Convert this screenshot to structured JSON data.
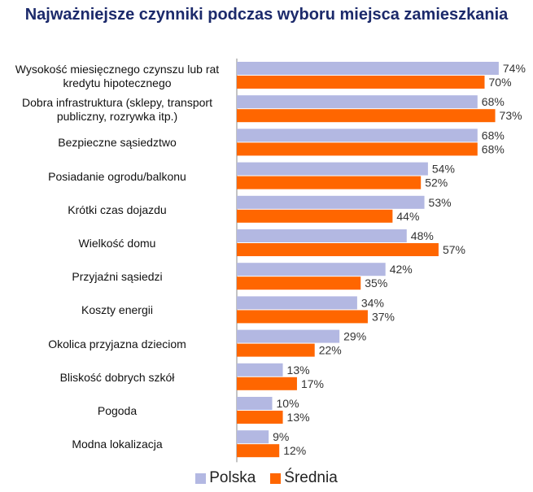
{
  "chart_data": {
    "type": "bar",
    "orientation": "horizontal",
    "title": "Najważniejsze czynniki podczas wyboru miejsca zamieszkania",
    "categories": [
      "Wysokość miesięcznego czynszu lub rat kredytu hipotecznego",
      "Dobra infrastruktura (sklepy, transport publiczny, rozrywka itp.)",
      "Bezpieczne sąsiedztwo",
      "Posiadanie ogrodu/balkonu",
      "Krótki czas dojazdu",
      "Wielkość domu",
      "Przyjaźni sąsiedzi",
      "Koszty energii",
      "Okolica przyjazna dzieciom",
      "Bliskość dobrych szkół",
      "Pogoda",
      "Modna lokalizacja"
    ],
    "series": [
      {
        "name": "Polska",
        "color": "#b3b8e2",
        "values": [
          74,
          68,
          68,
          54,
          53,
          48,
          42,
          34,
          29,
          13,
          10,
          9
        ],
        "value_labels": [
          "74%",
          "68%",
          "68%",
          "54%",
          "53%",
          "48%",
          "42%",
          "34%",
          "29%",
          "13%",
          "10%",
          "9%"
        ]
      },
      {
        "name": "Średnia",
        "color": "#ff6600",
        "values": [
          70,
          73,
          68,
          52,
          44,
          57,
          35,
          37,
          22,
          17,
          13,
          12
        ],
        "value_labels": [
          "70%",
          "73%",
          "68%",
          "52%",
          "44%",
          "57%",
          "35%",
          "37%",
          "22%",
          "17%",
          "13%",
          "12%"
        ]
      }
    ],
    "legend": "bottom"
  }
}
